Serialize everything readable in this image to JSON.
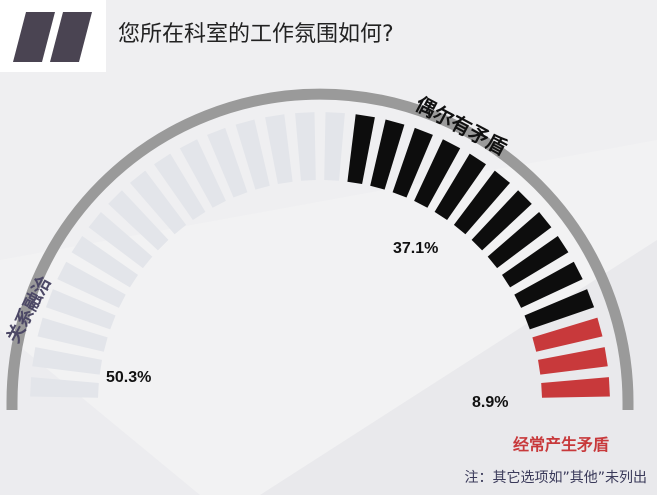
{
  "title": "您所在科室的工作氛围如何?",
  "footnote": "注：其它选项如”其他”未列出",
  "chart_data": {
    "type": "gauge",
    "segments": [
      {
        "name": "关系融洽",
        "value": 50.3,
        "label": "50.3%",
        "color": "#e3e5ea"
      },
      {
        "name": "偶尔有矛盾",
        "value": 37.1,
        "label": "37.1%",
        "color": "#0d0d0d"
      },
      {
        "name": "经常产生矛盾",
        "value": 8.9,
        "label": "8.9%",
        "color": "#c8393b"
      }
    ],
    "arc_color": "#9a9a9a",
    "range": [
      0,
      100
    ],
    "unit": "%"
  },
  "icons": {
    "logo": "quote-marks-logo"
  }
}
